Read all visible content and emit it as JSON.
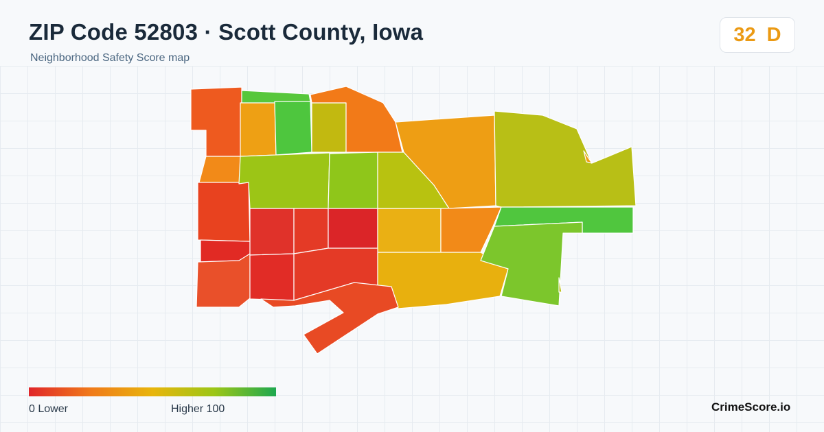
{
  "header": {
    "title": "ZIP Code 52803 · Scott County, Iowa",
    "subtitle": "Neighborhood Safety Score map"
  },
  "score": {
    "value": "32",
    "grade": "D",
    "color": "#eb9a14"
  },
  "legend": {
    "min_label": "0  Lower",
    "max_label": "Higher  100",
    "gradient": [
      "#e0262a",
      "#f07a1a",
      "#e8b50c",
      "#9cc617",
      "#1ea84f"
    ]
  },
  "brand": "CrimeScore.io"
}
